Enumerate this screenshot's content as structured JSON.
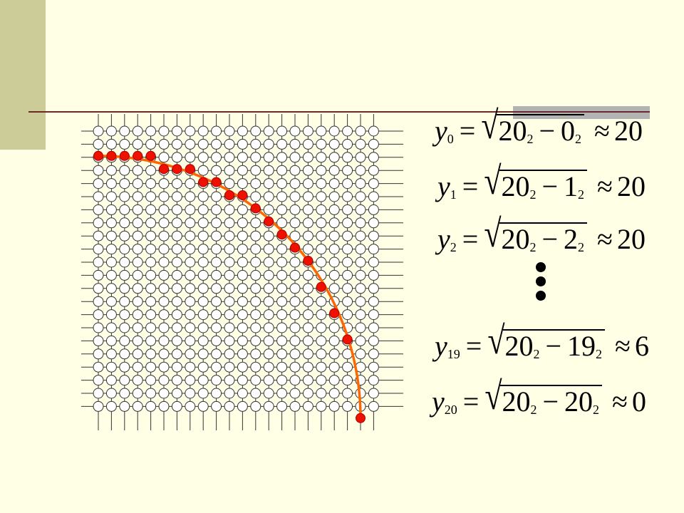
{
  "colors": {
    "background": "#FFFFE5",
    "sidebar": "#CCCC99",
    "rule": "#6B2A2A",
    "rule_accent": "#B3B3B3",
    "curve": "#FF6600",
    "points": "#EE1100",
    "grid": "#333333"
  },
  "grid": {
    "rows": 22,
    "cols": 22
  },
  "points": [
    {
      "x": 0,
      "y": 20
    },
    {
      "x": 1,
      "y": 20
    },
    {
      "x": 2,
      "y": 20
    },
    {
      "x": 3,
      "y": 20
    },
    {
      "x": 4,
      "y": 20
    },
    {
      "x": 5,
      "y": 19
    },
    {
      "x": 6,
      "y": 19
    },
    {
      "x": 7,
      "y": 19
    },
    {
      "x": 8,
      "y": 18
    },
    {
      "x": 9,
      "y": 18
    },
    {
      "x": 10,
      "y": 17
    },
    {
      "x": 11,
      "y": 17
    },
    {
      "x": 12,
      "y": 16
    },
    {
      "x": 13,
      "y": 15
    },
    {
      "x": 14,
      "y": 14
    },
    {
      "x": 15,
      "y": 13
    },
    {
      "x": 16,
      "y": 12
    },
    {
      "x": 17,
      "y": 10
    },
    {
      "x": 18,
      "y": 8
    },
    {
      "x": 19,
      "y": 6
    },
    {
      "x": 20,
      "y": 0
    }
  ],
  "equations": [
    {
      "var": "y",
      "sub": "0",
      "a": "20",
      "a_exp": "2",
      "b": "0",
      "b_exp": "2",
      "approx": "≈",
      "value": "20"
    },
    {
      "var": "y",
      "sub": "1",
      "a": "20",
      "a_exp": "2",
      "b": "1",
      "b_exp": "2",
      "approx": "≈",
      "value": "20"
    },
    {
      "var": "y",
      "sub": "2",
      "a": "20",
      "a_exp": "2",
      "b": "2",
      "b_exp": "2",
      "approx": "≈",
      "value": "20"
    },
    {
      "var": "y",
      "sub": "19",
      "a": "20",
      "a_exp": "2",
      "b": "19",
      "b_exp": "2",
      "approx": "≈",
      "value": "6"
    },
    {
      "var": "y",
      "sub": "20",
      "a": "20",
      "a_exp": "2",
      "b": "20",
      "b_exp": "2",
      "approx": "≈",
      "value": "0"
    }
  ],
  "symbols": {
    "equals": "=",
    "minus": "−",
    "radical": "√"
  }
}
